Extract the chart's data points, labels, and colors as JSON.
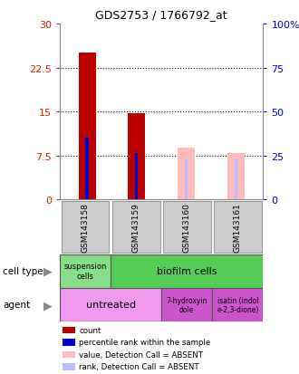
{
  "title": "GDS2753 / 1766792_at",
  "samples": [
    "GSM143158",
    "GSM143159",
    "GSM143160",
    "GSM143161"
  ],
  "ylim_left": [
    0,
    30
  ],
  "ylim_right": [
    0,
    100
  ],
  "yticks_left": [
    0,
    7.5,
    15,
    22.5,
    30
  ],
  "yticks_right": [
    0,
    25,
    50,
    75,
    100
  ],
  "bar_count_values": [
    25.0,
    14.7,
    0,
    0
  ],
  "bar_count_color": "#bb0000",
  "bar_rank_values": [
    10.5,
    8.0,
    0,
    0
  ],
  "bar_rank_color": "#0000cc",
  "bar_absent_value_values": [
    0,
    0,
    8.8,
    8.0
  ],
  "bar_absent_value_color": "#ffbbbb",
  "bar_absent_rank_values": [
    0,
    0,
    7.0,
    7.0
  ],
  "bar_absent_rank_color": "#bbbbff",
  "left_axis_color": "#cc2200",
  "right_axis_color": "#0000cc",
  "legend_items": [
    {
      "color": "#bb0000",
      "label": "count"
    },
    {
      "color": "#0000cc",
      "label": "percentile rank within the sample"
    },
    {
      "color": "#ffbbbb",
      "label": "value, Detection Call = ABSENT"
    },
    {
      "color": "#bbbbff",
      "label": "rank, Detection Call = ABSENT"
    }
  ],
  "cell_type_suspension_color": "#88dd88",
  "cell_type_biofilm_color": "#55cc55",
  "agent_untreated_color": "#ee99ee",
  "agent_other_color": "#cc55cc",
  "sample_box_color": "#cccccc",
  "sample_box_edge": "#999999"
}
